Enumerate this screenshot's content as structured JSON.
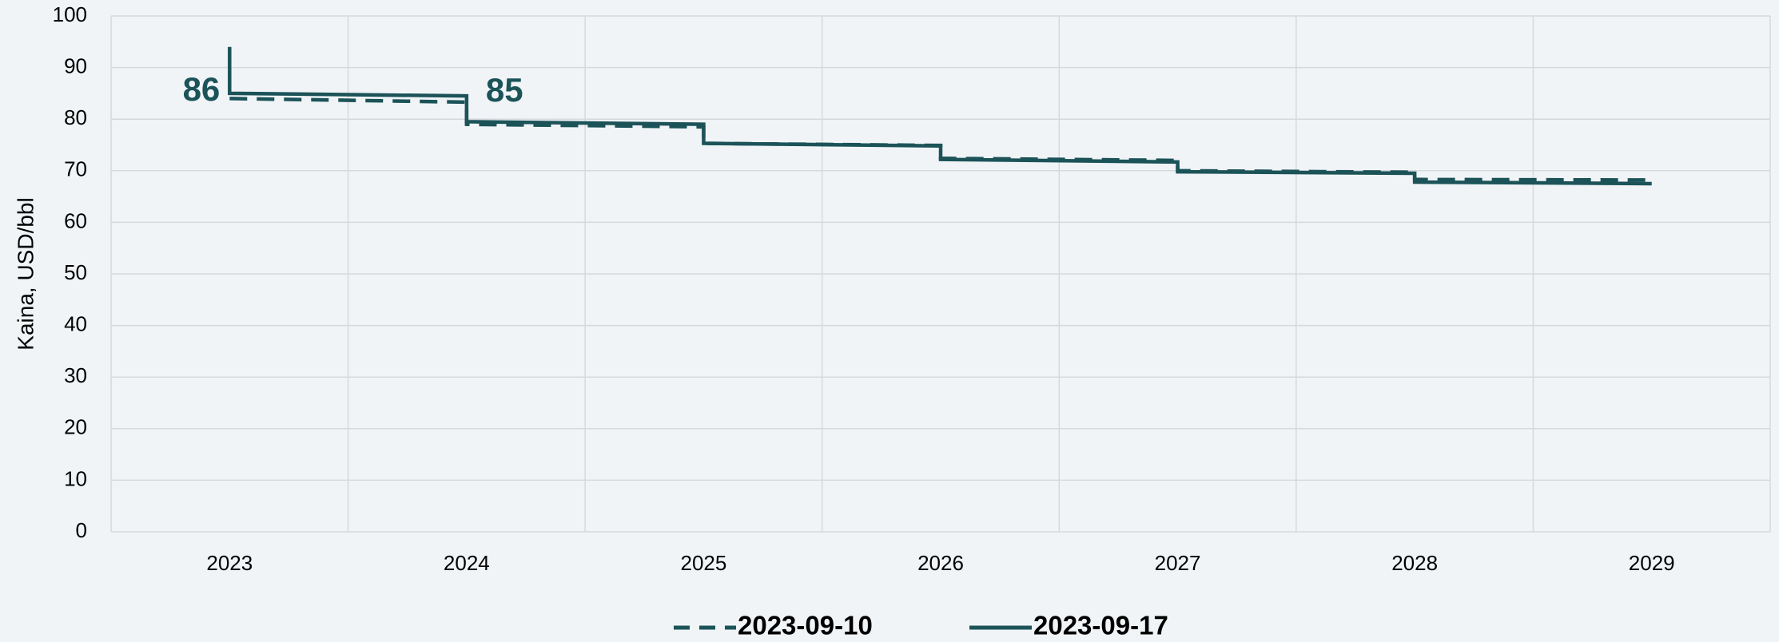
{
  "chart_data": {
    "type": "line",
    "step": true,
    "ylabel": "Kaina, USD/bbl",
    "xlim": [
      2022.5,
      2029.5
    ],
    "xticks": [
      2023,
      2024,
      2025,
      2026,
      2027,
      2028,
      2029
    ],
    "xgrid": [
      2022.5,
      2023.5,
      2024.5,
      2025.5,
      2026.5,
      2027.5,
      2028.5,
      2029.5
    ],
    "ylim": [
      0,
      100
    ],
    "yticks": [
      0,
      10,
      20,
      30,
      40,
      50,
      60,
      70,
      80,
      90,
      100
    ],
    "grid": true,
    "legend": "bottom",
    "series": [
      {
        "name": "2023-09-10",
        "color": "#1b5358",
        "dash": true,
        "x": [
          2023,
          2024,
          2024,
          2025,
          2025,
          2026,
          2026,
          2027,
          2027,
          2028,
          2028,
          2029
        ],
        "values": [
          84,
          83.3,
          79,
          78.5,
          75.3,
          74.9,
          72.4,
          72,
          70,
          69.7,
          68.3,
          68.2
        ]
      },
      {
        "name": "2023-09-17",
        "color": "#1b5358",
        "dash": false,
        "x": [
          2023,
          2023,
          2024,
          2024,
          2025,
          2025,
          2026,
          2026,
          2027,
          2027,
          2028,
          2028,
          2029
        ],
        "values": [
          94,
          85,
          84.5,
          79.5,
          79,
          75.3,
          74.8,
          72.2,
          71.7,
          69.8,
          69.5,
          67.8,
          67.5
        ]
      }
    ],
    "annotations": [
      "86",
      "85"
    ]
  }
}
